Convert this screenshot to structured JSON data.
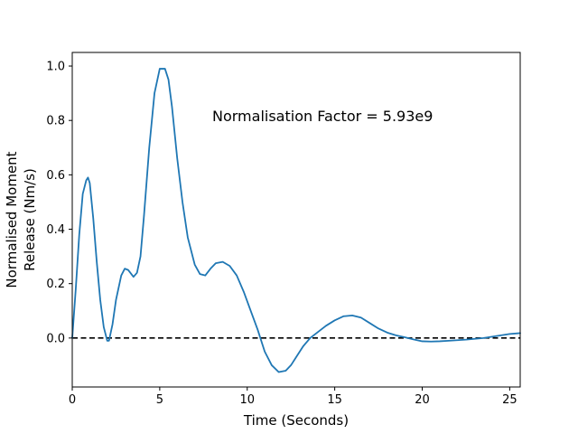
{
  "chart_data": {
    "type": "line",
    "title": "",
    "xlabel": "Time (Seconds)",
    "ylabel_lines": [
      "Normalised Moment",
      "Release (Nm/s)"
    ],
    "annotation": "Normalisation Factor = 5.93e9",
    "xlim": [
      0,
      25.6
    ],
    "ylim": [
      -0.18,
      1.05
    ],
    "x_ticks": [
      0,
      5,
      10,
      15,
      20,
      25
    ],
    "x_tick_labels": [
      "0",
      "5",
      "10",
      "15",
      "20",
      "25"
    ],
    "y_ticks": [
      0.0,
      0.2,
      0.4,
      0.6,
      0.8,
      1.0
    ],
    "y_tick_labels": [
      "0.0",
      "0.2",
      "0.4",
      "0.6",
      "0.8",
      "1.0"
    ],
    "grid": false,
    "reference_line": {
      "y": 0.0,
      "style": "dashed",
      "color": "#000000"
    },
    "series": [
      {
        "color": "#1f77b4",
        "x": [
          0,
          0.2,
          0.4,
          0.6,
          0.8,
          0.9,
          1.0,
          1.2,
          1.4,
          1.6,
          1.8,
          2.0,
          2.1,
          2.3,
          2.5,
          2.8,
          3.0,
          3.2,
          3.5,
          3.7,
          3.9,
          4.1,
          4.4,
          4.7,
          5.0,
          5.3,
          5.5,
          5.7,
          6.0,
          6.3,
          6.6,
          7.0,
          7.3,
          7.6,
          7.9,
          8.2,
          8.6,
          9.0,
          9.4,
          9.8,
          10.2,
          10.6,
          11.0,
          11.4,
          11.8,
          12.2,
          12.5,
          12.8,
          13.2,
          13.6,
          14.0,
          14.5,
          15.0,
          15.5,
          16.0,
          16.5,
          17.0,
          17.5,
          18.0,
          18.5,
          19.0,
          19.5,
          20.0,
          20.5,
          21.0,
          21.5,
          22.0,
          22.5,
          23.0,
          23.5,
          24.0,
          24.5,
          25.0,
          25.6
        ],
        "y": [
          0.0,
          0.18,
          0.38,
          0.53,
          0.58,
          0.59,
          0.57,
          0.44,
          0.28,
          0.14,
          0.04,
          -0.01,
          -0.01,
          0.05,
          0.14,
          0.23,
          0.255,
          0.25,
          0.225,
          0.24,
          0.3,
          0.45,
          0.7,
          0.9,
          0.99,
          0.99,
          0.95,
          0.85,
          0.66,
          0.5,
          0.37,
          0.27,
          0.235,
          0.23,
          0.255,
          0.275,
          0.28,
          0.265,
          0.23,
          0.17,
          0.1,
          0.03,
          -0.05,
          -0.1,
          -0.125,
          -0.12,
          -0.1,
          -0.07,
          -0.03,
          0.0,
          0.02,
          0.045,
          0.065,
          0.08,
          0.083,
          0.075,
          0.055,
          0.035,
          0.02,
          0.01,
          0.003,
          -0.005,
          -0.012,
          -0.013,
          -0.012,
          -0.01,
          -0.008,
          -0.006,
          -0.003,
          0.0,
          0.005,
          0.01,
          0.015,
          0.018
        ]
      }
    ]
  }
}
